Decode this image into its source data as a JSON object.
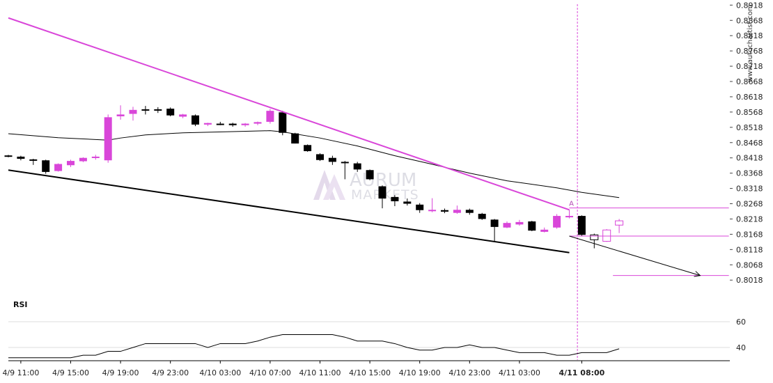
{
  "watermark": "www.autochartist.com",
  "logo": {
    "line1": "AURUM",
    "line2": "MARKETS"
  },
  "chart_data": {
    "type": "candlestick",
    "y_ticks": [
      "0.8918",
      "0.8868",
      "0.8818",
      "0.8768",
      "0.8718",
      "0.8668",
      "0.8618",
      "0.8568",
      "0.8518",
      "0.8468",
      "0.8418",
      "0.8368",
      "0.8318",
      "0.8268",
      "0.8218",
      "0.8168",
      "0.8118",
      "0.8068",
      "0.8018"
    ],
    "ylim": [
      0.7998,
      0.8921
    ],
    "x_ticks": [
      {
        "label": "4/9 11:00",
        "index": 1
      },
      {
        "label": "4/9 15:00",
        "index": 5
      },
      {
        "label": "4/9 19:00",
        "index": 9
      },
      {
        "label": "4/9 23:00",
        "index": 13
      },
      {
        "label": "4/10 03:00",
        "index": 17
      },
      {
        "label": "4/10 07:00",
        "index": 21
      },
      {
        "label": "4/10 11:00",
        "index": 25
      },
      {
        "label": "4/10 15:00",
        "index": 29
      },
      {
        "label": "4/10 19:00",
        "index": 33
      },
      {
        "label": "4/10 23:00",
        "index": 37
      },
      {
        "label": "4/11 03:00",
        "index": 41
      },
      {
        "label": "4/11 08:00",
        "index": 46,
        "bold": true
      }
    ],
    "candles": [
      {
        "o": 0.8426,
        "h": 0.8428,
        "l": 0.842,
        "c": 0.8422,
        "col": "black"
      },
      {
        "o": 0.8422,
        "h": 0.8425,
        "l": 0.841,
        "c": 0.8415,
        "col": "black"
      },
      {
        "o": 0.8413,
        "h": 0.8415,
        "l": 0.8395,
        "c": 0.841,
        "col": "black"
      },
      {
        "o": 0.841,
        "h": 0.8412,
        "l": 0.8366,
        "c": 0.8372,
        "col": "black"
      },
      {
        "o": 0.8375,
        "h": 0.84,
        "l": 0.8373,
        "c": 0.8398,
        "col": "magenta"
      },
      {
        "o": 0.8394,
        "h": 0.8412,
        "l": 0.8388,
        "c": 0.8408,
        "col": "magenta"
      },
      {
        "o": 0.8407,
        "h": 0.842,
        "l": 0.8404,
        "c": 0.8418,
        "col": "magenta"
      },
      {
        "o": 0.8418,
        "h": 0.8428,
        "l": 0.8412,
        "c": 0.8422,
        "col": "magenta"
      },
      {
        "o": 0.841,
        "h": 0.856,
        "l": 0.8402,
        "c": 0.8551,
        "col": "magenta"
      },
      {
        "o": 0.8554,
        "h": 0.859,
        "l": 0.8543,
        "c": 0.856,
        "col": "magenta"
      },
      {
        "o": 0.8562,
        "h": 0.8585,
        "l": 0.854,
        "c": 0.8575,
        "col": "magenta"
      },
      {
        "o": 0.8574,
        "h": 0.8588,
        "l": 0.856,
        "c": 0.8577,
        "col": "black"
      },
      {
        "o": 0.8577,
        "h": 0.8584,
        "l": 0.8565,
        "c": 0.8577,
        "col": "black"
      },
      {
        "o": 0.8579,
        "h": 0.8583,
        "l": 0.8554,
        "c": 0.8557,
        "col": "black"
      },
      {
        "o": 0.8553,
        "h": 0.8562,
        "l": 0.8548,
        "c": 0.856,
        "col": "magenta"
      },
      {
        "o": 0.8557,
        "h": 0.856,
        "l": 0.8522,
        "c": 0.8527,
        "col": "black"
      },
      {
        "o": 0.8527,
        "h": 0.8533,
        "l": 0.8522,
        "c": 0.8532,
        "col": "magenta"
      },
      {
        "o": 0.853,
        "h": 0.8536,
        "l": 0.8525,
        "c": 0.853,
        "col": "black"
      },
      {
        "o": 0.853,
        "h": 0.8533,
        "l": 0.852,
        "c": 0.8525,
        "col": "black"
      },
      {
        "o": 0.8525,
        "h": 0.8532,
        "l": 0.852,
        "c": 0.853,
        "col": "magenta"
      },
      {
        "o": 0.853,
        "h": 0.8537,
        "l": 0.8525,
        "c": 0.8535,
        "col": "magenta"
      },
      {
        "o": 0.8536,
        "h": 0.8578,
        "l": 0.853,
        "c": 0.8572,
        "col": "magenta"
      },
      {
        "o": 0.8567,
        "h": 0.8572,
        "l": 0.8492,
        "c": 0.85,
        "col": "black"
      },
      {
        "o": 0.8498,
        "h": 0.85,
        "l": 0.8465,
        "c": 0.8465,
        "col": "black"
      },
      {
        "o": 0.846,
        "h": 0.8462,
        "l": 0.8438,
        "c": 0.844,
        "col": "black"
      },
      {
        "o": 0.843,
        "h": 0.8433,
        "l": 0.8408,
        "c": 0.8411,
        "col": "black"
      },
      {
        "o": 0.8418,
        "h": 0.8425,
        "l": 0.8395,
        "c": 0.8405,
        "col": "black"
      },
      {
        "o": 0.8405,
        "h": 0.8408,
        "l": 0.8348,
        "c": 0.8402,
        "col": "black"
      },
      {
        "o": 0.84,
        "h": 0.8405,
        "l": 0.8372,
        "c": 0.838,
        "col": "black"
      },
      {
        "o": 0.8378,
        "h": 0.838,
        "l": 0.8345,
        "c": 0.8348,
        "col": "black"
      },
      {
        "o": 0.8325,
        "h": 0.8328,
        "l": 0.8253,
        "c": 0.8285,
        "col": "black"
      },
      {
        "o": 0.829,
        "h": 0.8296,
        "l": 0.826,
        "c": 0.8276,
        "col": "black"
      },
      {
        "o": 0.8275,
        "h": 0.8285,
        "l": 0.8262,
        "c": 0.8268,
        "col": "black"
      },
      {
        "o": 0.8265,
        "h": 0.827,
        "l": 0.8238,
        "c": 0.8247,
        "col": "black"
      },
      {
        "o": 0.8245,
        "h": 0.8286,
        "l": 0.824,
        "c": 0.8248,
        "col": "magenta"
      },
      {
        "o": 0.8247,
        "h": 0.8252,
        "l": 0.8237,
        "c": 0.8242,
        "col": "black"
      },
      {
        "o": 0.8238,
        "h": 0.8262,
        "l": 0.8235,
        "c": 0.8248,
        "col": "magenta"
      },
      {
        "o": 0.8248,
        "h": 0.8252,
        "l": 0.8232,
        "c": 0.8238,
        "col": "black"
      },
      {
        "o": 0.8235,
        "h": 0.8238,
        "l": 0.8215,
        "c": 0.8218,
        "col": "black"
      },
      {
        "o": 0.8216,
        "h": 0.8218,
        "l": 0.8146,
        "c": 0.8192,
        "col": "black"
      },
      {
        "o": 0.819,
        "h": 0.821,
        "l": 0.8188,
        "c": 0.8205,
        "col": "magenta"
      },
      {
        "o": 0.82,
        "h": 0.8215,
        "l": 0.8196,
        "c": 0.8208,
        "col": "magenta"
      },
      {
        "o": 0.821,
        "h": 0.8212,
        "l": 0.8178,
        "c": 0.818,
        "col": "black"
      },
      {
        "o": 0.8176,
        "h": 0.819,
        "l": 0.8174,
        "c": 0.8183,
        "col": "magenta"
      },
      {
        "o": 0.819,
        "h": 0.8234,
        "l": 0.8186,
        "c": 0.8228,
        "col": "magenta"
      },
      {
        "o": 0.8225,
        "h": 0.8248,
        "l": 0.822,
        "c": 0.8228,
        "col": "magenta"
      },
      {
        "o": 0.8228,
        "h": 0.823,
        "l": 0.8162,
        "c": 0.8166,
        "col": "black"
      },
      {
        "o": 0.815,
        "h": 0.817,
        "l": 0.8122,
        "c": 0.8166,
        "col": "black",
        "hollow": true
      },
      {
        "o": 0.8145,
        "h": 0.8185,
        "l": 0.8143,
        "c": 0.8182,
        "col": "magenta",
        "hollow": true
      },
      {
        "o": 0.8198,
        "h": 0.8218,
        "l": 0.8172,
        "c": 0.8212,
        "col": "magenta",
        "hollow": true
      }
    ],
    "moving_average": [
      {
        "i": 0,
        "v": 0.8497
      },
      {
        "i": 4,
        "v": 0.8484
      },
      {
        "i": 8,
        "v": 0.8476
      },
      {
        "i": 9,
        "v": 0.8483
      },
      {
        "i": 11,
        "v": 0.8493
      },
      {
        "i": 14,
        "v": 0.85
      },
      {
        "i": 18,
        "v": 0.8504
      },
      {
        "i": 21,
        "v": 0.8507
      },
      {
        "i": 22,
        "v": 0.8503
      },
      {
        "i": 25,
        "v": 0.8483
      },
      {
        "i": 28,
        "v": 0.8457
      },
      {
        "i": 31,
        "v": 0.8425
      },
      {
        "i": 34,
        "v": 0.8397
      },
      {
        "i": 37,
        "v": 0.8368
      },
      {
        "i": 40,
        "v": 0.8343
      },
      {
        "i": 44,
        "v": 0.832
      },
      {
        "i": 46,
        "v": 0.8305
      },
      {
        "i": 49,
        "v": 0.8288
      }
    ],
    "resistance_line": [
      {
        "i": 0,
        "v": 0.8876
      },
      {
        "i": 45,
        "v": 0.8248
      }
    ],
    "support_line": [
      {
        "i": 0,
        "v": 0.8378
      },
      {
        "i": 45,
        "v": 0.8108
      }
    ],
    "projection_arrow": [
      {
        "i": 45,
        "v": 0.8162
      },
      {
        "i": 55.5,
        "v": 0.8033
      }
    ],
    "horizontal_levels": [
      {
        "v": 0.8254,
        "from": 45,
        "to": 57.8
      },
      {
        "v": 0.8162,
        "from": 45,
        "to": 57.8
      },
      {
        "v": 0.8033,
        "from": 48.5,
        "to": 57.8
      }
    ],
    "breakout_index": 45.65,
    "breakout_label": "A",
    "rsi": {
      "label": "RSI",
      "ticks": [
        60,
        40
      ],
      "ylim": [
        30,
        70
      ],
      "values": [
        32,
        32,
        32,
        32,
        32,
        32,
        34,
        34,
        37,
        37,
        40,
        43,
        43,
        43,
        43,
        43,
        40,
        43,
        43,
        43,
        45,
        48,
        50,
        50,
        50,
        50,
        50,
        48,
        45,
        45,
        45,
        43,
        40,
        38,
        38,
        40,
        40,
        42,
        40,
        40,
        38,
        36,
        36,
        36,
        34,
        34,
        36,
        36,
        36,
        39
      ]
    }
  }
}
